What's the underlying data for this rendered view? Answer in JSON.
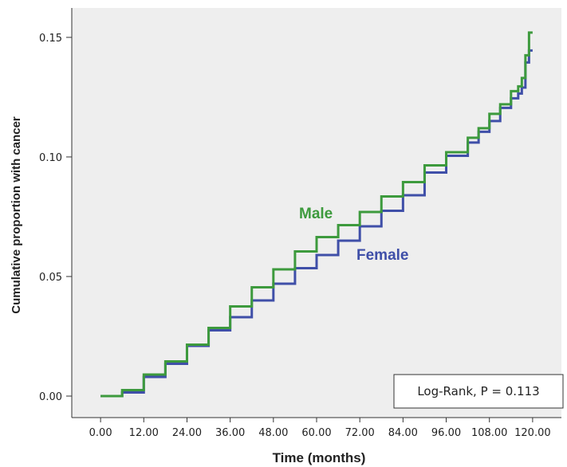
{
  "chart_data": {
    "type": "line",
    "xlabel": "Time (months)",
    "ylabel": "Cumulative proportion with cancer",
    "xlim": [
      -8,
      128
    ],
    "ylim": [
      -0.009,
      0.1623
    ],
    "x_ticks": [
      0,
      12,
      24,
      36,
      48,
      60,
      72,
      84,
      96,
      108,
      120
    ],
    "x_tick_labels": [
      "0.00",
      "12.00",
      "24.00",
      "36.00",
      "48.00",
      "60.00",
      "72.00",
      "84.00",
      "96.00",
      "108.00",
      "120.00"
    ],
    "y_ticks": [
      0,
      0.05,
      0.1,
      0.15
    ],
    "y_tick_labels": [
      "0.00",
      "0.05",
      "0.10",
      "0.15"
    ],
    "plot_background": "#eeeeee",
    "grid": false,
    "series": [
      {
        "name": "Male",
        "color": "#3d9a3d",
        "x": [
          0,
          3,
          6,
          12,
          18,
          24,
          30,
          36,
          42,
          48,
          54,
          60,
          66,
          72,
          78,
          84,
          90,
          96,
          102,
          105,
          108,
          111,
          114,
          116,
          117,
          118,
          119,
          120
        ],
        "y": [
          0,
          0,
          0.0025,
          0.009,
          0.0145,
          0.0215,
          0.0285,
          0.0375,
          0.0455,
          0.053,
          0.0605,
          0.0665,
          0.0715,
          0.077,
          0.0835,
          0.0895,
          0.0965,
          0.102,
          0.108,
          0.112,
          0.118,
          0.122,
          0.1275,
          0.1295,
          0.133,
          0.1425,
          0.152,
          0.152
        ]
      },
      {
        "name": "Female",
        "color": "#3f4fa8",
        "x": [
          0,
          3,
          6,
          12,
          18,
          24,
          30,
          36,
          42,
          48,
          54,
          60,
          66,
          72,
          78,
          84,
          90,
          96,
          102,
          105,
          108,
          111,
          114,
          116,
          117,
          118,
          119,
          120
        ],
        "y": [
          0,
          0,
          0.0015,
          0.008,
          0.0135,
          0.021,
          0.0275,
          0.033,
          0.04,
          0.047,
          0.0535,
          0.059,
          0.065,
          0.071,
          0.0775,
          0.084,
          0.0935,
          0.1005,
          0.106,
          0.1105,
          0.115,
          0.1205,
          0.1245,
          0.1265,
          0.129,
          0.1395,
          0.1445,
          0.1445
        ]
      }
    ],
    "annotations": {
      "male_label": "Male",
      "female_label": "Female",
      "test_result": "Log-Rank,  P = 0.113"
    }
  }
}
